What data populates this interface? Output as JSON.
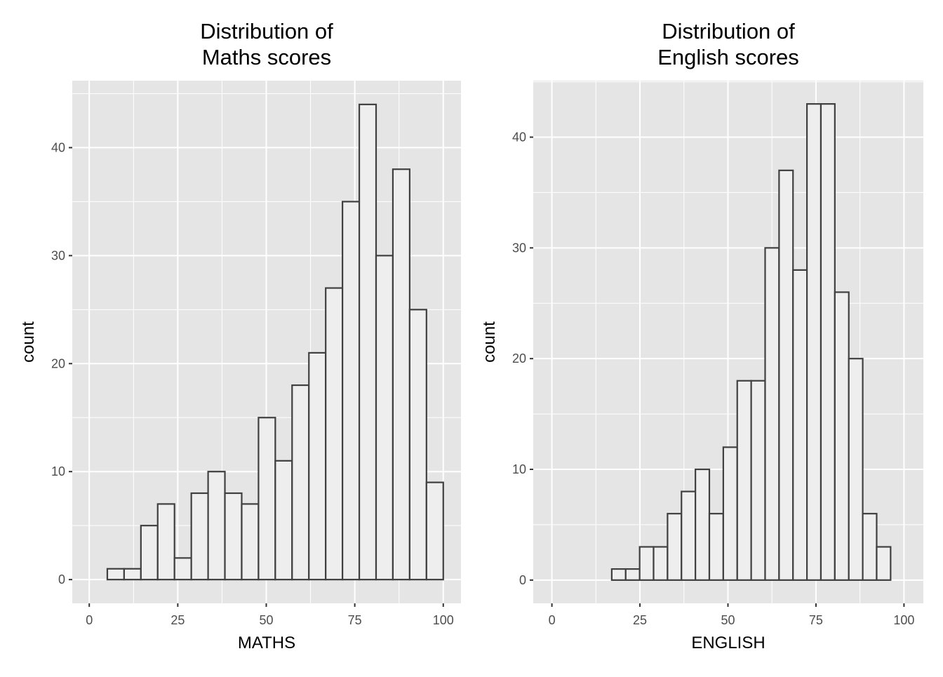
{
  "chart_data": [
    {
      "type": "bar",
      "title": [
        "Distribution of",
        "Maths scores"
      ],
      "xlabel": "MATHS",
      "ylabel": "count",
      "bin_start": 5.1,
      "bin_width": 4.745,
      "values": [
        1,
        1,
        5,
        7,
        2,
        8,
        10,
        8,
        7,
        15,
        11,
        18,
        21,
        27,
        35,
        44,
        30,
        38,
        25,
        9
      ],
      "xlim": [
        -4.8,
        105.0
      ],
      "ylim": [
        -2.2,
        46.2
      ],
      "xticks": [
        0,
        25,
        50,
        75,
        100
      ],
      "yticks": [
        0,
        10,
        20,
        30,
        40
      ],
      "grid": true,
      "colors": {
        "panel": "#e5e5e5",
        "grid": "#ffffff",
        "bar_fill": "#eeeeee",
        "bar_stroke": "#404040"
      }
    },
    {
      "type": "bar",
      "title": [
        "Distribution of",
        "English scores"
      ],
      "xlabel": "ENGLISH",
      "ylabel": "count",
      "bin_start": 17.0,
      "bin_width": 3.96,
      "values": [
        1,
        1,
        3,
        3,
        6,
        8,
        10,
        6,
        12,
        18,
        18,
        30,
        37,
        28,
        43,
        43,
        26,
        20,
        6,
        3
      ],
      "xlim": [
        -5.3,
        105.5
      ],
      "ylim": [
        -2.1,
        45.1
      ],
      "xticks": [
        0,
        25,
        50,
        75,
        100
      ],
      "yticks": [
        0,
        10,
        20,
        30,
        40
      ],
      "grid": true,
      "colors": {
        "panel": "#e5e5e5",
        "grid": "#ffffff",
        "bar_fill": "#eeeeee",
        "bar_stroke": "#404040"
      }
    }
  ]
}
